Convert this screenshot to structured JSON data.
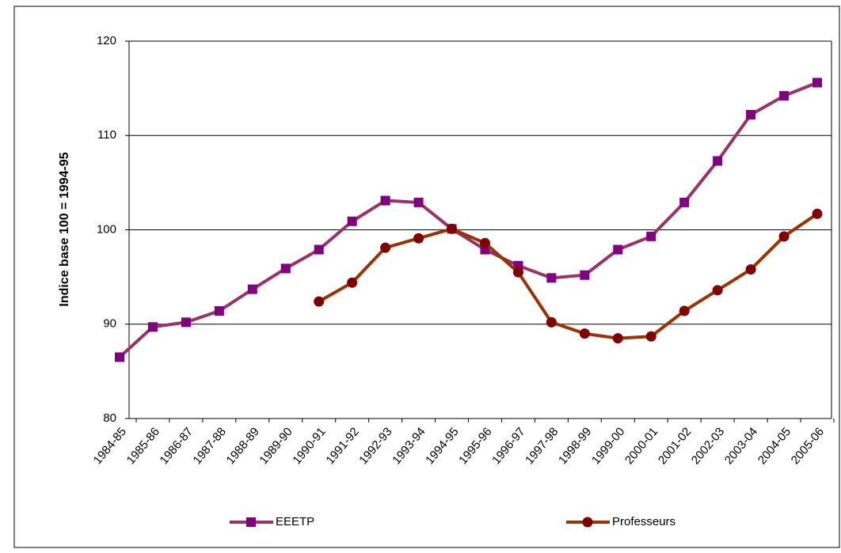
{
  "chart_data": {
    "type": "line",
    "ylabel": "Indice base 100 = 1994-95",
    "categories": [
      "1984-85",
      "1985-86",
      "1986-87",
      "1987-88",
      "1988-89",
      "1989-90",
      "1990-91",
      "1991-92",
      "1992-93",
      "1993-94",
      "1994-95",
      "1995-96",
      "1996-97",
      "1997-98",
      "1998-99",
      "1999-00",
      "2000-01",
      "2001-02",
      "2002-03",
      "2003-04",
      "2004-05",
      "2005-06"
    ],
    "series": [
      {
        "name": "EEETP",
        "color": "#993366",
        "marker_color": "#800080",
        "marker": "square",
        "values": [
          86.5,
          89.7,
          90.2,
          91.4,
          93.7,
          95.9,
          97.9,
          100.9,
          103.1,
          102.9,
          100.1,
          97.9,
          96.2,
          94.9,
          95.2,
          97.9,
          99.3,
          102.9,
          107.3,
          112.2,
          114.2,
          115.6
        ]
      },
      {
        "name": "Professeurs",
        "color": "#993300",
        "marker_color": "#800000",
        "marker": "circle",
        "values": [
          null,
          null,
          null,
          null,
          null,
          null,
          92.4,
          94.4,
          98.1,
          99.1,
          100.1,
          98.6,
          95.5,
          90.2,
          89.0,
          88.5,
          88.7,
          91.4,
          93.6,
          95.8,
          99.3,
          101.7
        ]
      }
    ],
    "ylim": [
      80,
      120
    ],
    "yticks": [
      80,
      90,
      100,
      110,
      120
    ],
    "grid": true,
    "legend": "bottom"
  }
}
